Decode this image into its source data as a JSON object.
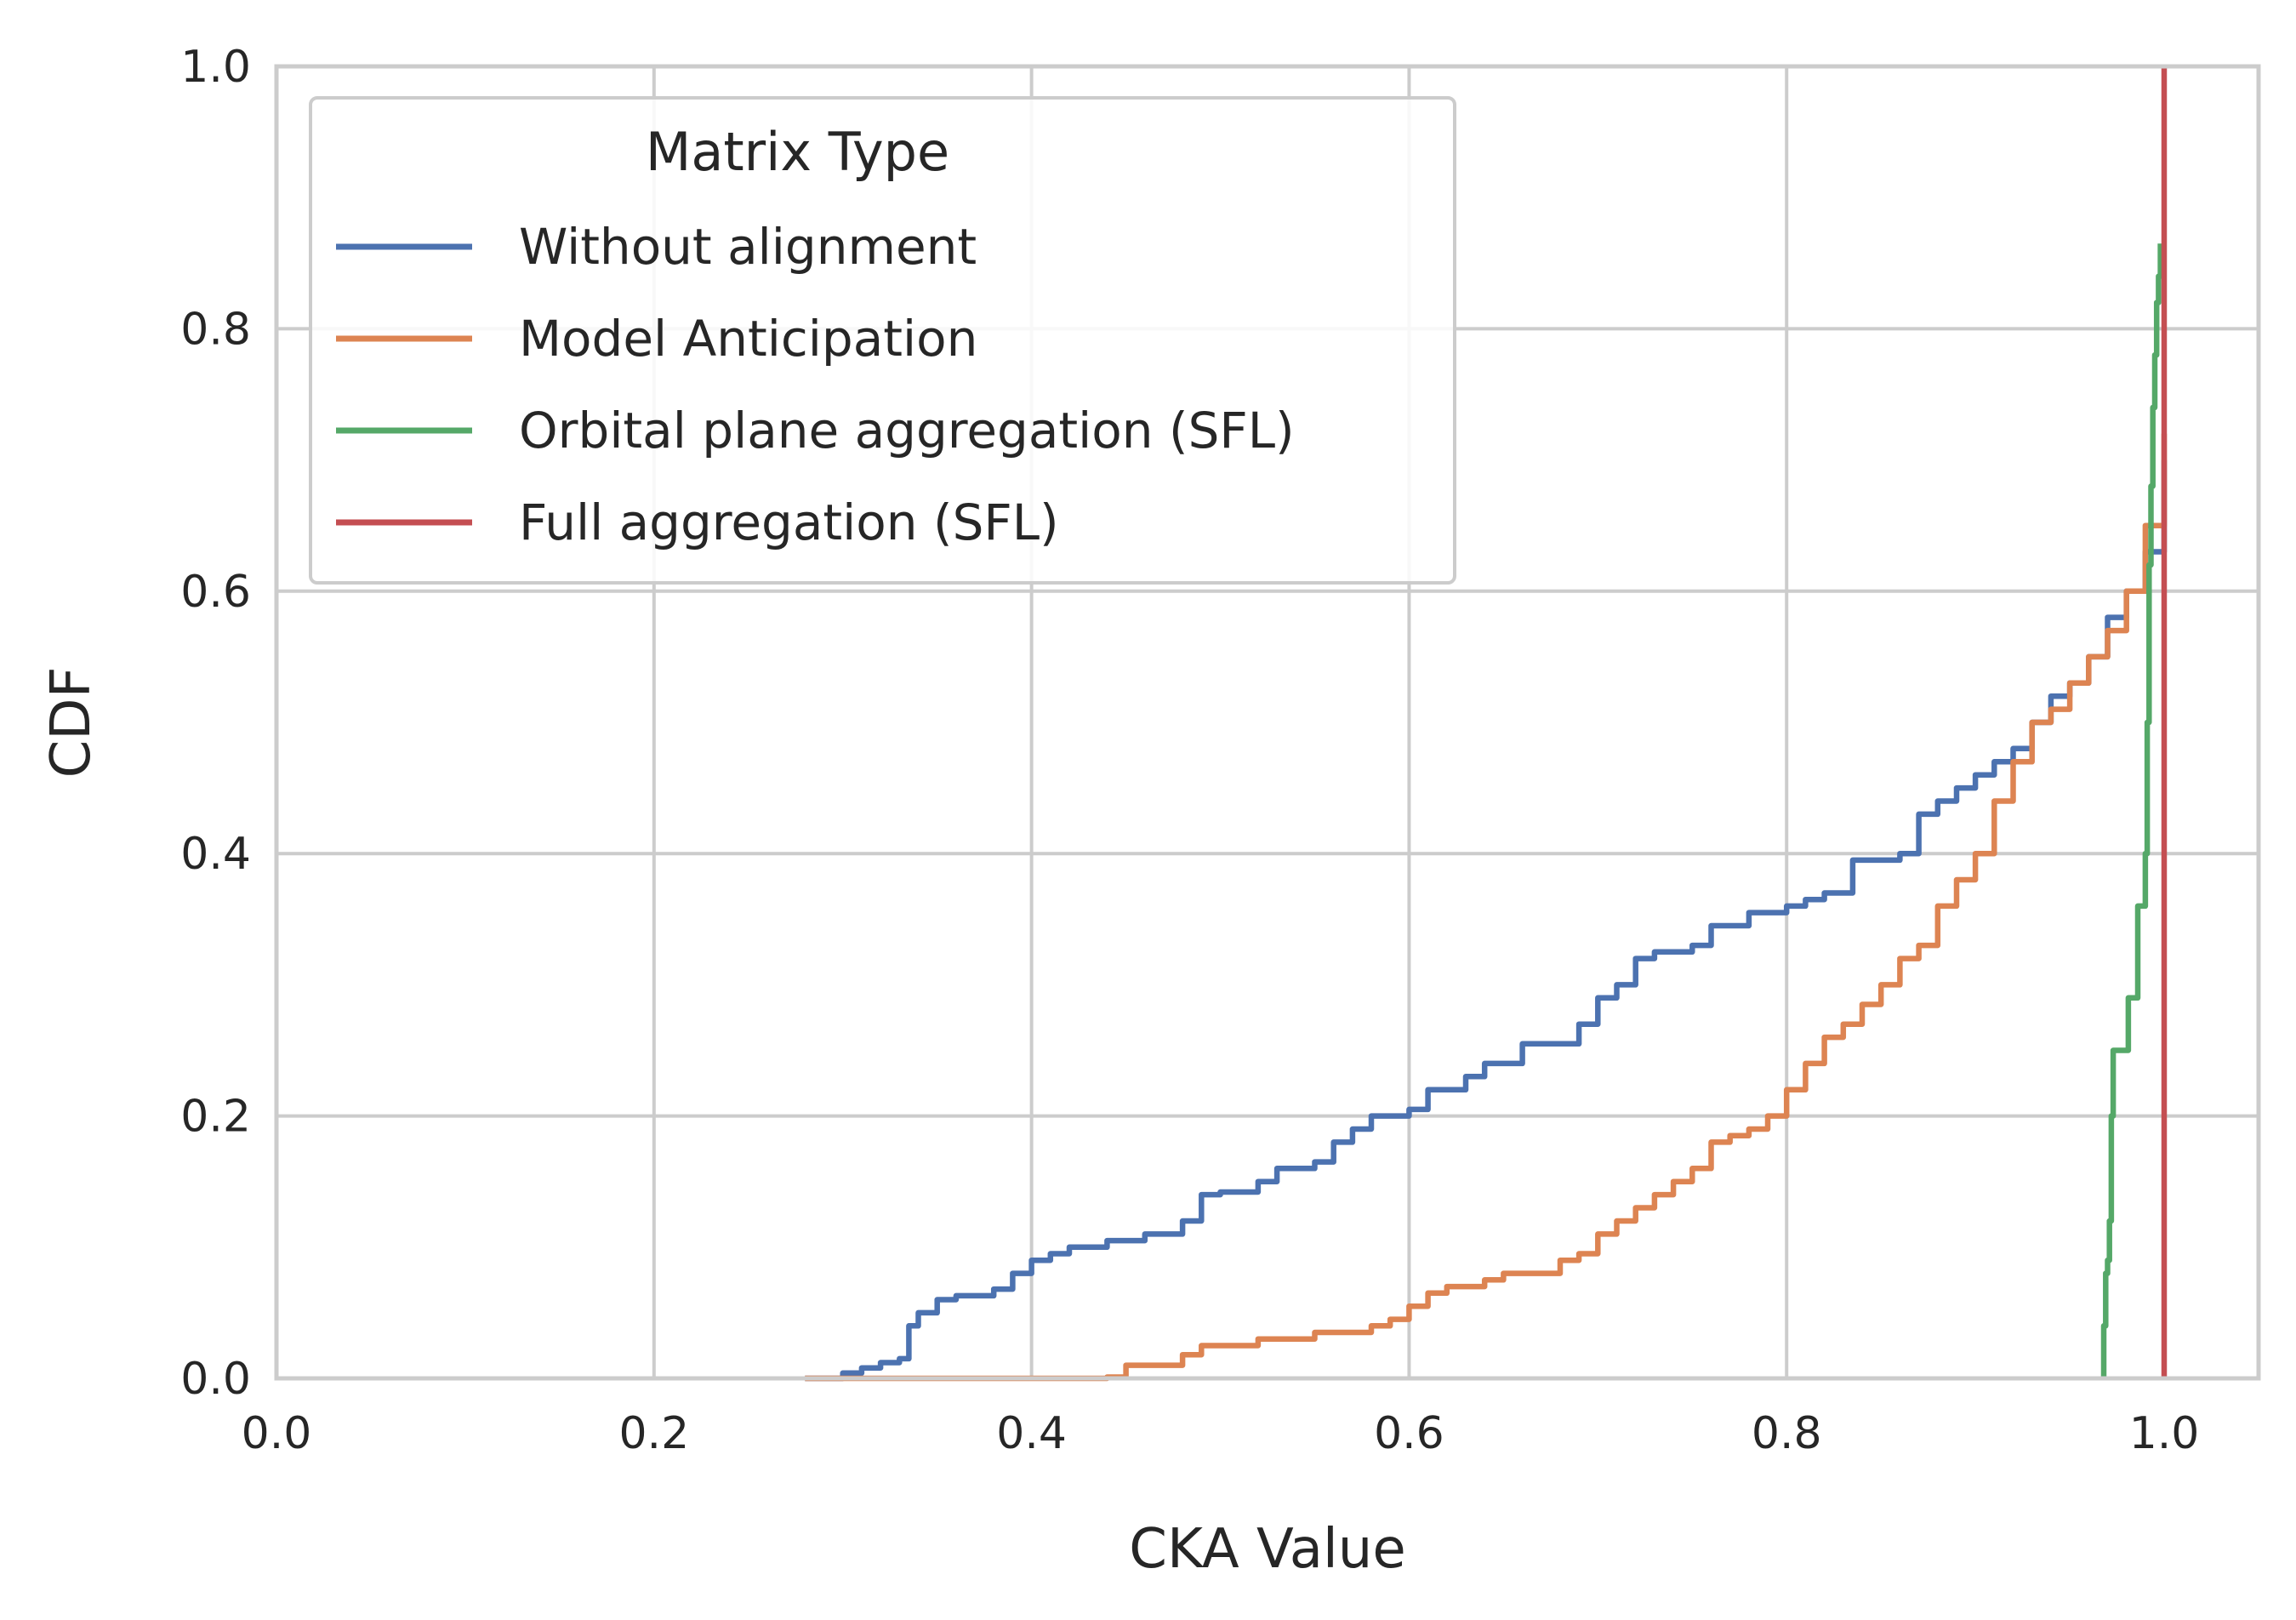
{
  "chart_data": {
    "type": "line",
    "xlabel": "CKA Value",
    "ylabel": "CDF",
    "xlim": [
      0.0,
      1.05
    ],
    "ylim": [
      0.0,
      1.0
    ],
    "xticks": [
      "0.0",
      "0.2",
      "0.4",
      "0.6",
      "0.8",
      "1.0"
    ],
    "yticks": [
      "0.0",
      "0.2",
      "0.4",
      "0.6",
      "0.8",
      "1.0"
    ],
    "grid": true,
    "legend": {
      "title": "Matrix Type",
      "position": "top-left"
    },
    "series": [
      {
        "name": "Without alignment",
        "color": "#4c72b0",
        "x": [
          0.28,
          0.3,
          0.31,
          0.32,
          0.33,
          0.335,
          0.34,
          0.35,
          0.36,
          0.38,
          0.39,
          0.4,
          0.41,
          0.42,
          0.44,
          0.46,
          0.48,
          0.49,
          0.5,
          0.52,
          0.53,
          0.55,
          0.56,
          0.57,
          0.58,
          0.6,
          0.61,
          0.63,
          0.64,
          0.66,
          0.69,
          0.7,
          0.71,
          0.72,
          0.73,
          0.75,
          0.76,
          0.78,
          0.8,
          0.81,
          0.82,
          0.835,
          0.86,
          0.87,
          0.88,
          0.89,
          0.9,
          0.91,
          0.92,
          0.93,
          0.94,
          0.95,
          0.96,
          0.97,
          0.98,
          0.99,
          1.0
        ],
        "y": [
          0.0,
          0.004,
          0.008,
          0.012,
          0.015,
          0.04,
          0.05,
          0.06,
          0.063,
          0.068,
          0.08,
          0.09,
          0.095,
          0.1,
          0.105,
          0.11,
          0.12,
          0.14,
          0.142,
          0.15,
          0.16,
          0.165,
          0.18,
          0.19,
          0.2,
          0.205,
          0.22,
          0.23,
          0.24,
          0.255,
          0.27,
          0.29,
          0.3,
          0.32,
          0.325,
          0.33,
          0.345,
          0.355,
          0.36,
          0.365,
          0.37,
          0.395,
          0.4,
          0.43,
          0.44,
          0.45,
          0.46,
          0.47,
          0.48,
          0.5,
          0.52,
          0.53,
          0.55,
          0.58,
          0.6,
          0.63,
          0.7
        ]
      },
      {
        "name": "Model Anticipation",
        "color": "#dd8452",
        "x": [
          0.28,
          0.44,
          0.45,
          0.48,
          0.49,
          0.52,
          0.55,
          0.58,
          0.59,
          0.6,
          0.61,
          0.62,
          0.64,
          0.65,
          0.68,
          0.69,
          0.7,
          0.71,
          0.72,
          0.73,
          0.74,
          0.75,
          0.76,
          0.77,
          0.78,
          0.79,
          0.8,
          0.81,
          0.82,
          0.83,
          0.84,
          0.85,
          0.86,
          0.87,
          0.88,
          0.89,
          0.9,
          0.91,
          0.92,
          0.93,
          0.94,
          0.95,
          0.96,
          0.97,
          0.98,
          0.99,
          1.0
        ],
        "y": [
          0.0,
          0.001,
          0.01,
          0.018,
          0.025,
          0.03,
          0.035,
          0.04,
          0.045,
          0.055,
          0.065,
          0.07,
          0.075,
          0.08,
          0.09,
          0.095,
          0.11,
          0.12,
          0.13,
          0.14,
          0.15,
          0.16,
          0.18,
          0.185,
          0.19,
          0.2,
          0.22,
          0.24,
          0.26,
          0.27,
          0.285,
          0.3,
          0.32,
          0.33,
          0.36,
          0.38,
          0.4,
          0.44,
          0.47,
          0.5,
          0.51,
          0.53,
          0.55,
          0.57,
          0.6,
          0.65,
          0.72
        ]
      },
      {
        "name": "Orbital plane aggregation (SFL)",
        "color": "#55a868",
        "x": [
          0.968,
          0.968,
          0.969,
          0.97,
          0.971,
          0.972,
          0.973,
          0.98,
          0.981,
          0.985,
          0.986,
          0.99,
          0.991,
          0.992,
          0.993,
          0.994,
          0.995,
          0.996,
          0.997,
          0.998
        ],
        "y": [
          0.0,
          0.04,
          0.08,
          0.09,
          0.12,
          0.2,
          0.25,
          0.25,
          0.29,
          0.29,
          0.36,
          0.4,
          0.5,
          0.62,
          0.68,
          0.74,
          0.78,
          0.82,
          0.84,
          0.865
        ]
      },
      {
        "name": "Full aggregation (SFL)",
        "color": "#c44e52",
        "x": [
          1.0,
          1.0
        ],
        "y": [
          0.0,
          1.0
        ]
      }
    ]
  }
}
